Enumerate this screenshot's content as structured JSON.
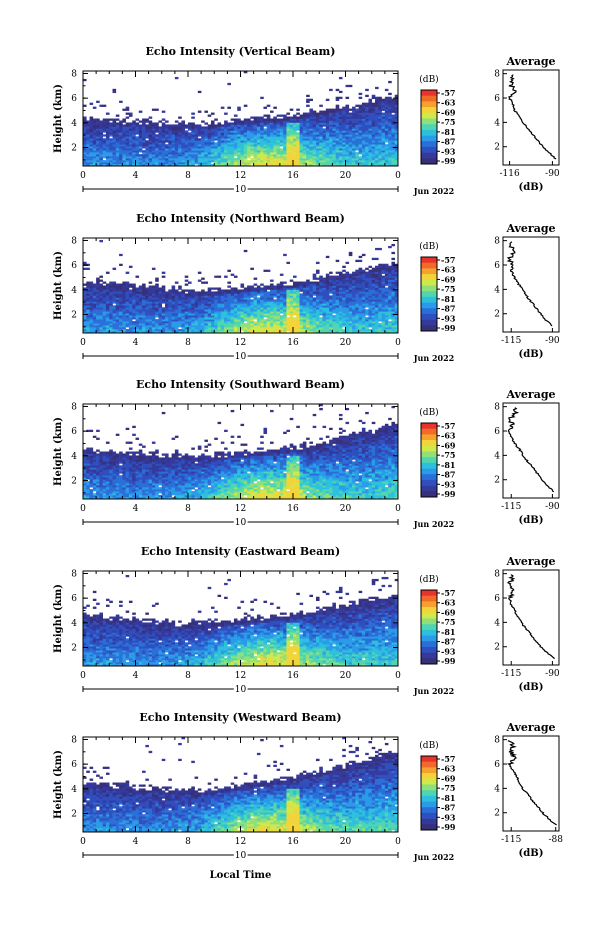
{
  "colorbar": {
    "unit": "(dB)",
    "ticks": [
      "-57",
      "-63",
      "-69",
      "-75",
      "-81",
      "-87",
      "-93",
      "-99"
    ],
    "colors": [
      "#e8322c",
      "#f26a2a",
      "#f6a12d",
      "#f2d43a",
      "#cfe84a",
      "#8fe07a",
      "#4fd6b0",
      "#2cc0dc",
      "#2a9be8",
      "#2a6fd8",
      "#2f4fbf",
      "#34399c",
      "#36307a"
    ]
  },
  "shared": {
    "x_ticks": [
      "0",
      "4",
      "8",
      "12",
      "16",
      "20",
      "0"
    ],
    "date_day": "10",
    "date_month": "Jun 2022",
    "x_axis_label": "Local Time",
    "y_axis_label": "Height (km)",
    "y_ticks": [
      "2",
      "4",
      "6",
      "8"
    ],
    "avg_title": "Average",
    "avg_xlabel": "(dB)"
  },
  "chart_data": [
    {
      "type": "heatmap",
      "title": "Echo Intensity (Vertical Beam)",
      "xlabel": "",
      "ylabel": "Height (km)",
      "xlim": [
        0,
        24
      ],
      "ylim": [
        0.5,
        8.2
      ],
      "clim": [
        -99,
        -57
      ],
      "echo_top_km": [
        4.4,
        4.3,
        4.2,
        4.3,
        4.2,
        4.1,
        4.0,
        4.0,
        3.9,
        3.9,
        4.0,
        4.2,
        4.3,
        4.4,
        4.5,
        4.5,
        4.7,
        4.9,
        5.0,
        5.2,
        5.4,
        5.6,
        5.8,
        6.0,
        6.0
      ],
      "average_profile": {
        "title": "Average",
        "xlabel": "(dB)",
        "x_ticks": [
          "-116",
          "-90"
        ],
        "xlim": [
          -120,
          -86
        ],
        "y_ticks": [
          "2",
          "4",
          "6",
          "8"
        ],
        "height_km": [
          1,
          1.5,
          2,
          2.5,
          3,
          3.5,
          4,
          4.5,
          5,
          5.5,
          6,
          6.5,
          7,
          7.5,
          8
        ],
        "intensity_db": [
          -88,
          -92,
          -96,
          -99,
          -102,
          -105,
          -108,
          -110,
          -113,
          -114,
          -116,
          -113,
          -115,
          -114,
          -115
        ]
      }
    },
    {
      "type": "heatmap",
      "title": "Echo Intensity (Northward Beam)",
      "xlabel": "",
      "ylabel": "Height (km)",
      "xlim": [
        0,
        24
      ],
      "ylim": [
        0.5,
        8.2
      ],
      "clim": [
        -99,
        -57
      ],
      "echo_top_km": [
        4.6,
        4.7,
        4.6,
        4.5,
        4.4,
        4.3,
        4.2,
        4.1,
        4.0,
        3.9,
        4.0,
        4.1,
        4.2,
        4.3,
        4.4,
        4.5,
        4.6,
        4.8,
        5.0,
        5.2,
        5.4,
        5.6,
        5.8,
        6.0,
        6.2
      ],
      "average_profile": {
        "title": "Average",
        "xlabel": "(dB)",
        "x_ticks": [
          "-115",
          "-90"
        ],
        "xlim": [
          -120,
          -86
        ],
        "y_ticks": [
          "2",
          "4",
          "6",
          "8"
        ],
        "height_km": [
          1,
          1.5,
          2,
          2.5,
          3,
          3.5,
          4,
          4.5,
          5,
          5.5,
          6,
          6.5,
          7,
          7.5,
          8
        ],
        "intensity_db": [
          -90,
          -94,
          -97,
          -100,
          -103,
          -106,
          -108,
          -111,
          -113,
          -115,
          -114,
          -116,
          -113,
          -115,
          -114
        ]
      }
    },
    {
      "type": "heatmap",
      "title": "Echo Intensity (Southward Beam)",
      "xlabel": "",
      "ylabel": "Height (km)",
      "xlim": [
        0,
        24
      ],
      "ylim": [
        0.5,
        8.2
      ],
      "clim": [
        -99,
        -57
      ],
      "echo_top_km": [
        4.6,
        4.5,
        4.4,
        4.3,
        4.2,
        4.2,
        4.1,
        4.1,
        4.0,
        4.0,
        4.1,
        4.2,
        4.3,
        4.4,
        4.5,
        4.6,
        4.7,
        4.9,
        5.0,
        5.3,
        5.6,
        5.8,
        6.0,
        6.4,
        6.8
      ],
      "average_profile": {
        "title": "Average",
        "xlabel": "(dB)",
        "x_ticks": [
          "-115",
          "-90"
        ],
        "xlim": [
          -120,
          -86
        ],
        "y_ticks": [
          "2",
          "4",
          "6",
          "8"
        ],
        "height_km": [
          1,
          1.5,
          2,
          2.5,
          3,
          3.5,
          4,
          4.5,
          5,
          5.5,
          6,
          6.5,
          7,
          7.5,
          8
        ],
        "intensity_db": [
          -89,
          -93,
          -96,
          -99,
          -102,
          -105,
          -108,
          -110,
          -113,
          -115,
          -117,
          -114,
          -116,
          -112,
          -113
        ]
      }
    },
    {
      "type": "heatmap",
      "title": "Echo Intensity (Eastward Beam)",
      "xlabel": "",
      "ylabel": "Height (km)",
      "xlim": [
        0,
        24
      ],
      "ylim": [
        0.5,
        8.2
      ],
      "clim": [
        -99,
        -57
      ],
      "echo_top_km": [
        4.7,
        4.6,
        4.5,
        4.4,
        4.3,
        4.2,
        4.1,
        4.0,
        4.0,
        4.0,
        4.1,
        4.2,
        4.3,
        4.4,
        4.5,
        4.6,
        4.7,
        4.9,
        5.1,
        5.3,
        5.5,
        5.7,
        5.9,
        6.1,
        6.4
      ],
      "average_profile": {
        "title": "Average",
        "xlabel": "(dB)",
        "x_ticks": [
          "-115",
          "-90"
        ],
        "xlim": [
          -120,
          -86
        ],
        "y_ticks": [
          "2",
          "4",
          "6",
          "8"
        ],
        "height_km": [
          1,
          1.5,
          2,
          2.5,
          3,
          3.5,
          4,
          4.5,
          5,
          5.5,
          6,
          6.5,
          7,
          7.5,
          8
        ],
        "intensity_db": [
          -89,
          -93,
          -97,
          -100,
          -103,
          -106,
          -109,
          -111,
          -113,
          -115,
          -116,
          -114,
          -116,
          -115,
          -114
        ]
      }
    },
    {
      "type": "heatmap",
      "title": "Echo Intensity (Westward Beam)",
      "xlabel": "",
      "ylabel": "Height (km)",
      "xlim": [
        0,
        24
      ],
      "ylim": [
        0.5,
        8.2
      ],
      "clim": [
        -99,
        -57
      ],
      "echo_top_km": [
        4.4,
        4.4,
        4.3,
        4.3,
        4.2,
        4.1,
        4.0,
        4.0,
        3.9,
        3.9,
        4.0,
        4.2,
        4.3,
        4.5,
        4.6,
        4.8,
        5.0,
        5.2,
        5.4,
        5.6,
        5.9,
        6.2,
        6.4,
        6.8,
        7.0
      ],
      "average_profile": {
        "title": "Average",
        "xlabel": "(dB)",
        "x_ticks": [
          "-115",
          "-88"
        ],
        "xlim": [
          -120,
          -86
        ],
        "y_ticks": [
          "2",
          "4",
          "6",
          "8"
        ],
        "height_km": [
          1,
          1.5,
          2,
          2.5,
          3,
          3.5,
          4,
          4.5,
          5,
          5.5,
          6,
          6.5,
          7,
          7.5,
          8
        ],
        "intensity_db": [
          -88,
          -92,
          -96,
          -99,
          -102,
          -105,
          -108,
          -110,
          -112,
          -114,
          -116,
          -113,
          -115,
          -114,
          -116
        ]
      }
    }
  ]
}
